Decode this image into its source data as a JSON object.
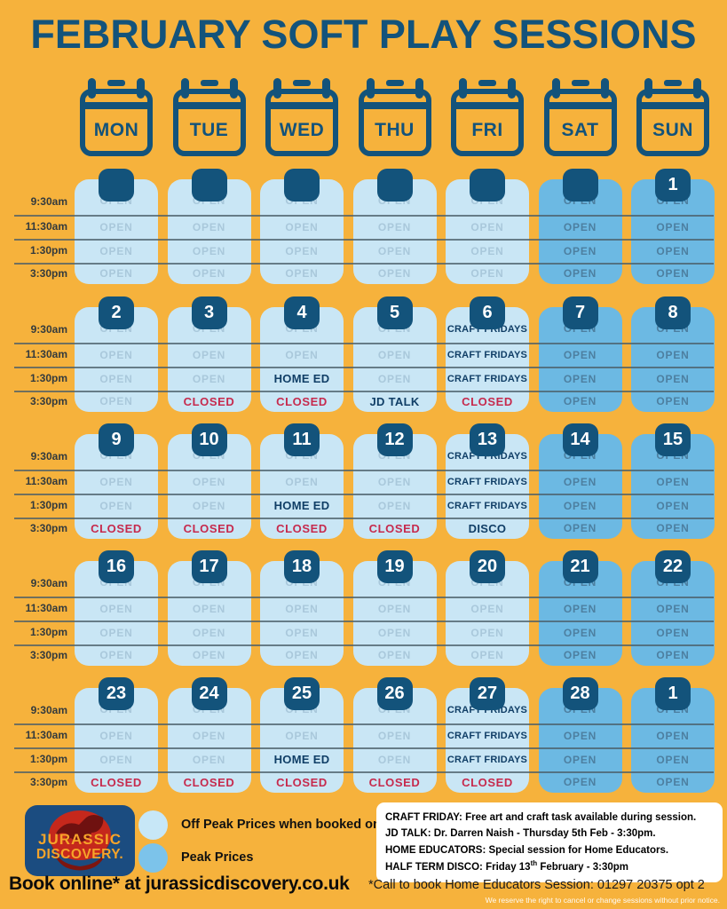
{
  "title": "FEBRUARY SOFT PLAY SESSIONS",
  "colors": {
    "background": "#F6B23C",
    "navy": "#13537B",
    "off_peak_cell": "#C9E6F5",
    "peak_cell": "#6CB9E3",
    "open_off_text": "#A9C8DB",
    "open_peak_text": "#4D7FA0",
    "closed_text": "#C62A4D",
    "event_text": "#103E66",
    "divider": "#4A5E68",
    "time_label": "#333A3D"
  },
  "calendar": {
    "day_headers": [
      "MON",
      "TUE",
      "WED",
      "THU",
      "FRI",
      "SAT",
      "SUN"
    ],
    "time_labels": [
      "9:30am",
      "11:30am",
      "1:30pm",
      "3:30pm"
    ],
    "weeks": [
      {
        "days": [
          {
            "date": "",
            "peak": false,
            "slots": [
              {
                "label": "OPEN",
                "status": "open"
              },
              {
                "label": "OPEN",
                "status": "open"
              },
              {
                "label": "OPEN",
                "status": "open"
              },
              {
                "label": "OPEN",
                "status": "open"
              }
            ]
          },
          {
            "date": "",
            "peak": false,
            "slots": [
              {
                "label": "OPEN",
                "status": "open"
              },
              {
                "label": "OPEN",
                "status": "open"
              },
              {
                "label": "OPEN",
                "status": "open"
              },
              {
                "label": "OPEN",
                "status": "open"
              }
            ]
          },
          {
            "date": "",
            "peak": false,
            "slots": [
              {
                "label": "OPEN",
                "status": "open"
              },
              {
                "label": "OPEN",
                "status": "open"
              },
              {
                "label": "OPEN",
                "status": "open"
              },
              {
                "label": "OPEN",
                "status": "open"
              }
            ]
          },
          {
            "date": "",
            "peak": false,
            "slots": [
              {
                "label": "OPEN",
                "status": "open"
              },
              {
                "label": "OPEN",
                "status": "open"
              },
              {
                "label": "OPEN",
                "status": "open"
              },
              {
                "label": "OPEN",
                "status": "open"
              }
            ]
          },
          {
            "date": "",
            "peak": false,
            "slots": [
              {
                "label": "OPEN",
                "status": "open"
              },
              {
                "label": "OPEN",
                "status": "open"
              },
              {
                "label": "OPEN",
                "status": "open"
              },
              {
                "label": "OPEN",
                "status": "open"
              }
            ]
          },
          {
            "date": "",
            "peak": true,
            "slots": [
              {
                "label": "OPEN",
                "status": "open"
              },
              {
                "label": "OPEN",
                "status": "open"
              },
              {
                "label": "OPEN",
                "status": "open"
              },
              {
                "label": "OPEN",
                "status": "open"
              }
            ]
          },
          {
            "date": "1",
            "peak": true,
            "slots": [
              {
                "label": "OPEN",
                "status": "open"
              },
              {
                "label": "OPEN",
                "status": "open"
              },
              {
                "label": "OPEN",
                "status": "open"
              },
              {
                "label": "OPEN",
                "status": "open"
              }
            ]
          }
        ]
      },
      {
        "days": [
          {
            "date": "2",
            "peak": false,
            "slots": [
              {
                "label": "OPEN",
                "status": "open"
              },
              {
                "label": "OPEN",
                "status": "open"
              },
              {
                "label": "OPEN",
                "status": "open"
              },
              {
                "label": "OPEN",
                "status": "open"
              }
            ]
          },
          {
            "date": "3",
            "peak": false,
            "slots": [
              {
                "label": "OPEN",
                "status": "open"
              },
              {
                "label": "OPEN",
                "status": "open"
              },
              {
                "label": "OPEN",
                "status": "open"
              },
              {
                "label": "CLOSED",
                "status": "closed"
              }
            ]
          },
          {
            "date": "4",
            "peak": false,
            "slots": [
              {
                "label": "OPEN",
                "status": "open"
              },
              {
                "label": "OPEN",
                "status": "open"
              },
              {
                "label": "HOME ED",
                "status": "event"
              },
              {
                "label": "CLOSED",
                "status": "closed"
              }
            ]
          },
          {
            "date": "5",
            "peak": false,
            "slots": [
              {
                "label": "OPEN",
                "status": "open"
              },
              {
                "label": "OPEN",
                "status": "open"
              },
              {
                "label": "OPEN",
                "status": "open"
              },
              {
                "label": "JD TALK",
                "status": "event"
              }
            ]
          },
          {
            "date": "6",
            "peak": false,
            "slots": [
              {
                "label": "CRAFT FRIDAYS",
                "status": "event"
              },
              {
                "label": "CRAFT FRIDAYS",
                "status": "event"
              },
              {
                "label": "CRAFT FRIDAYS",
                "status": "event"
              },
              {
                "label": "CLOSED",
                "status": "closed"
              }
            ]
          },
          {
            "date": "7",
            "peak": true,
            "slots": [
              {
                "label": "OPEN",
                "status": "open"
              },
              {
                "label": "OPEN",
                "status": "open"
              },
              {
                "label": "OPEN",
                "status": "open"
              },
              {
                "label": "OPEN",
                "status": "open"
              }
            ]
          },
          {
            "date": "8",
            "peak": true,
            "slots": [
              {
                "label": "OPEN",
                "status": "open"
              },
              {
                "label": "OPEN",
                "status": "open"
              },
              {
                "label": "OPEN",
                "status": "open"
              },
              {
                "label": "OPEN",
                "status": "open"
              }
            ]
          }
        ]
      },
      {
        "days": [
          {
            "date": "9",
            "peak": false,
            "slots": [
              {
                "label": "OPEN",
                "status": "open"
              },
              {
                "label": "OPEN",
                "status": "open"
              },
              {
                "label": "OPEN",
                "status": "open"
              },
              {
                "label": "CLOSED",
                "status": "closed"
              }
            ]
          },
          {
            "date": "10",
            "peak": false,
            "slots": [
              {
                "label": "OPEN",
                "status": "open"
              },
              {
                "label": "OPEN",
                "status": "open"
              },
              {
                "label": "OPEN",
                "status": "open"
              },
              {
                "label": "CLOSED",
                "status": "closed"
              }
            ]
          },
          {
            "date": "11",
            "peak": false,
            "slots": [
              {
                "label": "OPEN",
                "status": "open"
              },
              {
                "label": "OPEN",
                "status": "open"
              },
              {
                "label": "HOME ED",
                "status": "event"
              },
              {
                "label": "CLOSED",
                "status": "closed"
              }
            ]
          },
          {
            "date": "12",
            "peak": false,
            "slots": [
              {
                "label": "OPEN",
                "status": "open"
              },
              {
                "label": "OPEN",
                "status": "open"
              },
              {
                "label": "OPEN",
                "status": "open"
              },
              {
                "label": "CLOSED",
                "status": "closed"
              }
            ]
          },
          {
            "date": "13",
            "peak": false,
            "slots": [
              {
                "label": "CRAFT FRIDAYS",
                "status": "event"
              },
              {
                "label": "CRAFT FRIDAYS",
                "status": "event"
              },
              {
                "label": "CRAFT FRIDAYS",
                "status": "event"
              },
              {
                "label": "DISCO",
                "status": "event"
              }
            ]
          },
          {
            "date": "14",
            "peak": true,
            "slots": [
              {
                "label": "OPEN",
                "status": "open"
              },
              {
                "label": "OPEN",
                "status": "open"
              },
              {
                "label": "OPEN",
                "status": "open"
              },
              {
                "label": "OPEN",
                "status": "open"
              }
            ]
          },
          {
            "date": "15",
            "peak": true,
            "slots": [
              {
                "label": "OPEN",
                "status": "open"
              },
              {
                "label": "OPEN",
                "status": "open"
              },
              {
                "label": "OPEN",
                "status": "open"
              },
              {
                "label": "OPEN",
                "status": "open"
              }
            ]
          }
        ]
      },
      {
        "days": [
          {
            "date": "16",
            "peak": false,
            "slots": [
              {
                "label": "OPEN",
                "status": "open"
              },
              {
                "label": "OPEN",
                "status": "open"
              },
              {
                "label": "OPEN",
                "status": "open"
              },
              {
                "label": "OPEN",
                "status": "open"
              }
            ]
          },
          {
            "date": "17",
            "peak": false,
            "slots": [
              {
                "label": "OPEN",
                "status": "open"
              },
              {
                "label": "OPEN",
                "status": "open"
              },
              {
                "label": "OPEN",
                "status": "open"
              },
              {
                "label": "OPEN",
                "status": "open"
              }
            ]
          },
          {
            "date": "18",
            "peak": false,
            "slots": [
              {
                "label": "OPEN",
                "status": "open"
              },
              {
                "label": "OPEN",
                "status": "open"
              },
              {
                "label": "OPEN",
                "status": "open"
              },
              {
                "label": "OPEN",
                "status": "open"
              }
            ]
          },
          {
            "date": "19",
            "peak": false,
            "slots": [
              {
                "label": "OPEN",
                "status": "open"
              },
              {
                "label": "OPEN",
                "status": "open"
              },
              {
                "label": "OPEN",
                "status": "open"
              },
              {
                "label": "OPEN",
                "status": "open"
              }
            ]
          },
          {
            "date": "20",
            "peak": false,
            "slots": [
              {
                "label": "OPEN",
                "status": "open"
              },
              {
                "label": "OPEN",
                "status": "open"
              },
              {
                "label": "OPEN",
                "status": "open"
              },
              {
                "label": "OPEN",
                "status": "open"
              }
            ]
          },
          {
            "date": "21",
            "peak": true,
            "slots": [
              {
                "label": "OPEN",
                "status": "open"
              },
              {
                "label": "OPEN",
                "status": "open"
              },
              {
                "label": "OPEN",
                "status": "open"
              },
              {
                "label": "OPEN",
                "status": "open"
              }
            ]
          },
          {
            "date": "22",
            "peak": true,
            "slots": [
              {
                "label": "OPEN",
                "status": "open"
              },
              {
                "label": "OPEN",
                "status": "open"
              },
              {
                "label": "OPEN",
                "status": "open"
              },
              {
                "label": "OPEN",
                "status": "open"
              }
            ]
          }
        ]
      },
      {
        "days": [
          {
            "date": "23",
            "peak": false,
            "slots": [
              {
                "label": "OPEN",
                "status": "open"
              },
              {
                "label": "OPEN",
                "status": "open"
              },
              {
                "label": "OPEN",
                "status": "open"
              },
              {
                "label": "CLOSED",
                "status": "closed"
              }
            ]
          },
          {
            "date": "24",
            "peak": false,
            "slots": [
              {
                "label": "OPEN",
                "status": "open"
              },
              {
                "label": "OPEN",
                "status": "open"
              },
              {
                "label": "OPEN",
                "status": "open"
              },
              {
                "label": "CLOSED",
                "status": "closed"
              }
            ]
          },
          {
            "date": "25",
            "peak": false,
            "slots": [
              {
                "label": "OPEN",
                "status": "open"
              },
              {
                "label": "OPEN",
                "status": "open"
              },
              {
                "label": "HOME ED",
                "status": "event"
              },
              {
                "label": "CLOSED",
                "status": "closed"
              }
            ]
          },
          {
            "date": "26",
            "peak": false,
            "slots": [
              {
                "label": "OPEN",
                "status": "open"
              },
              {
                "label": "OPEN",
                "status": "open"
              },
              {
                "label": "OPEN",
                "status": "open"
              },
              {
                "label": "CLOSED",
                "status": "closed"
              }
            ]
          },
          {
            "date": "27",
            "peak": false,
            "slots": [
              {
                "label": "CRAFT FRIDAYS",
                "status": "event"
              },
              {
                "label": "CRAFT FRIDAYS",
                "status": "event"
              },
              {
                "label": "CRAFT FRIDAYS",
                "status": "event"
              },
              {
                "label": "CLOSED",
                "status": "closed"
              }
            ]
          },
          {
            "date": "28",
            "peak": true,
            "slots": [
              {
                "label": "OPEN",
                "status": "open"
              },
              {
                "label": "OPEN",
                "status": "open"
              },
              {
                "label": "OPEN",
                "status": "open"
              },
              {
                "label": "OPEN",
                "status": "open"
              }
            ]
          },
          {
            "date": "1",
            "peak": true,
            "slots": [
              {
                "label": "OPEN",
                "status": "open"
              },
              {
                "label": "OPEN",
                "status": "open"
              },
              {
                "label": "OPEN",
                "status": "open"
              },
              {
                "label": "OPEN",
                "status": "open"
              }
            ]
          }
        ]
      }
    ]
  },
  "footer": {
    "logo": {
      "line1": "JURASSIC",
      "line2": "DISCOVERY."
    },
    "legend": [
      {
        "label": "Off Peak Prices when booked online"
      },
      {
        "label": "Peak Prices"
      }
    ],
    "info_box": {
      "lines": [
        {
          "text": "CRAFT FRIDAY: Free art and craft task available during session."
        },
        {
          "text": "JD TALK: Dr. Darren Naish - Thursday 5th Feb - 3:30pm."
        },
        {
          "text": "HOME EDUCATORS: Special session for Home Educators."
        },
        {
          "pre": "HALF TERM DISCO: Friday 13",
          "sup": "th",
          "post": " February - 3:30pm"
        }
      ]
    },
    "book_online": "Book online* at jurassicdiscovery.co.uk",
    "call_note": "*Call to book Home Educators Session: 01297 20375 opt 2",
    "disclaimer": "We reserve the right to cancel or change sessions without prior notice."
  }
}
